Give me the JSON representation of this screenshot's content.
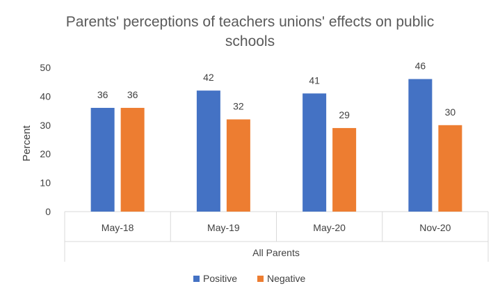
{
  "chart_data": {
    "type": "bar",
    "title": "Parents' perceptions of teachers unions' effects on public schools",
    "title_lines": [
      "Parents' perceptions of teachers unions' effects on public",
      "schools"
    ],
    "ylabel": "Percent",
    "xlabel": "",
    "group_label": "All Parents",
    "categories": [
      "May-18",
      "May-19",
      "May-20",
      "Nov-20"
    ],
    "series": [
      {
        "name": "Positive",
        "color": "#4472C4",
        "values": [
          36,
          42,
          41,
          46
        ]
      },
      {
        "name": "Negative",
        "color": "#ED7D31",
        "values": [
          36,
          32,
          29,
          30
        ]
      }
    ],
    "ylim": [
      0,
      50
    ],
    "yticks": [
      0,
      10,
      20,
      30,
      40,
      50
    ],
    "grid": false,
    "legend": "bottom",
    "data_labels": true
  }
}
